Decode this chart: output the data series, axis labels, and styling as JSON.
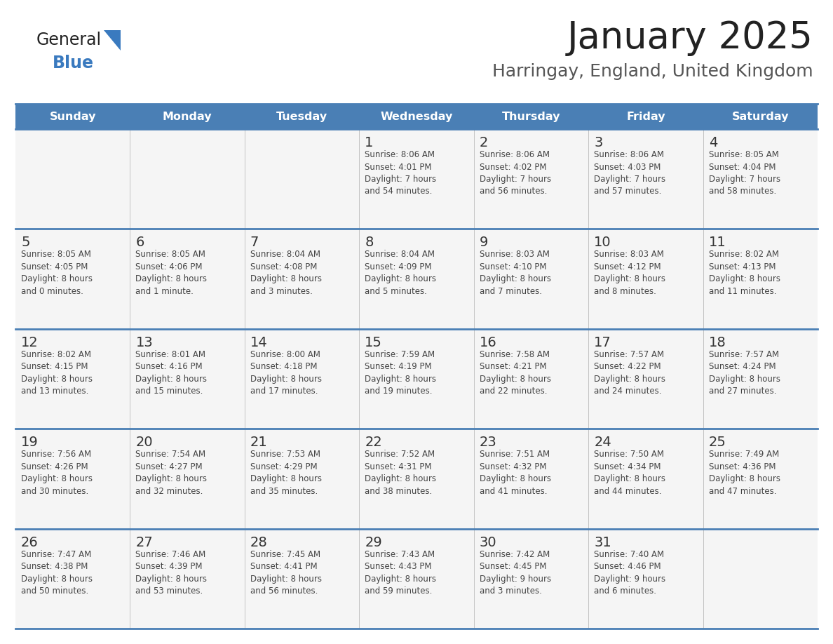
{
  "title": "January 2025",
  "subtitle": "Harringay, England, United Kingdom",
  "header_bg_color": "#4a7fb5",
  "header_text_color": "#ffffff",
  "cell_bg_color": "#f5f5f5",
  "day_number_color": "#333333",
  "cell_text_color": "#444444",
  "border_color": "#4a7fb5",
  "row_border_color": "#4a7fb5",
  "days_of_week": [
    "Sunday",
    "Monday",
    "Tuesday",
    "Wednesday",
    "Thursday",
    "Friday",
    "Saturday"
  ],
  "title_color": "#222222",
  "subtitle_color": "#555555",
  "logo_general_color": "#222222",
  "logo_blue_color": "#3a7abf",
  "calendar_data": [
    [
      "",
      "",
      "",
      "1\nSunrise: 8:06 AM\nSunset: 4:01 PM\nDaylight: 7 hours\nand 54 minutes.",
      "2\nSunrise: 8:06 AM\nSunset: 4:02 PM\nDaylight: 7 hours\nand 56 minutes.",
      "3\nSunrise: 8:06 AM\nSunset: 4:03 PM\nDaylight: 7 hours\nand 57 minutes.",
      "4\nSunrise: 8:05 AM\nSunset: 4:04 PM\nDaylight: 7 hours\nand 58 minutes."
    ],
    [
      "5\nSunrise: 8:05 AM\nSunset: 4:05 PM\nDaylight: 8 hours\nand 0 minutes.",
      "6\nSunrise: 8:05 AM\nSunset: 4:06 PM\nDaylight: 8 hours\nand 1 minute.",
      "7\nSunrise: 8:04 AM\nSunset: 4:08 PM\nDaylight: 8 hours\nand 3 minutes.",
      "8\nSunrise: 8:04 AM\nSunset: 4:09 PM\nDaylight: 8 hours\nand 5 minutes.",
      "9\nSunrise: 8:03 AM\nSunset: 4:10 PM\nDaylight: 8 hours\nand 7 minutes.",
      "10\nSunrise: 8:03 AM\nSunset: 4:12 PM\nDaylight: 8 hours\nand 8 minutes.",
      "11\nSunrise: 8:02 AM\nSunset: 4:13 PM\nDaylight: 8 hours\nand 11 minutes."
    ],
    [
      "12\nSunrise: 8:02 AM\nSunset: 4:15 PM\nDaylight: 8 hours\nand 13 minutes.",
      "13\nSunrise: 8:01 AM\nSunset: 4:16 PM\nDaylight: 8 hours\nand 15 minutes.",
      "14\nSunrise: 8:00 AM\nSunset: 4:18 PM\nDaylight: 8 hours\nand 17 minutes.",
      "15\nSunrise: 7:59 AM\nSunset: 4:19 PM\nDaylight: 8 hours\nand 19 minutes.",
      "16\nSunrise: 7:58 AM\nSunset: 4:21 PM\nDaylight: 8 hours\nand 22 minutes.",
      "17\nSunrise: 7:57 AM\nSunset: 4:22 PM\nDaylight: 8 hours\nand 24 minutes.",
      "18\nSunrise: 7:57 AM\nSunset: 4:24 PM\nDaylight: 8 hours\nand 27 minutes."
    ],
    [
      "19\nSunrise: 7:56 AM\nSunset: 4:26 PM\nDaylight: 8 hours\nand 30 minutes.",
      "20\nSunrise: 7:54 AM\nSunset: 4:27 PM\nDaylight: 8 hours\nand 32 minutes.",
      "21\nSunrise: 7:53 AM\nSunset: 4:29 PM\nDaylight: 8 hours\nand 35 minutes.",
      "22\nSunrise: 7:52 AM\nSunset: 4:31 PM\nDaylight: 8 hours\nand 38 minutes.",
      "23\nSunrise: 7:51 AM\nSunset: 4:32 PM\nDaylight: 8 hours\nand 41 minutes.",
      "24\nSunrise: 7:50 AM\nSunset: 4:34 PM\nDaylight: 8 hours\nand 44 minutes.",
      "25\nSunrise: 7:49 AM\nSunset: 4:36 PM\nDaylight: 8 hours\nand 47 minutes."
    ],
    [
      "26\nSunrise: 7:47 AM\nSunset: 4:38 PM\nDaylight: 8 hours\nand 50 minutes.",
      "27\nSunrise: 7:46 AM\nSunset: 4:39 PM\nDaylight: 8 hours\nand 53 minutes.",
      "28\nSunrise: 7:45 AM\nSunset: 4:41 PM\nDaylight: 8 hours\nand 56 minutes.",
      "29\nSunrise: 7:43 AM\nSunset: 4:43 PM\nDaylight: 8 hours\nand 59 minutes.",
      "30\nSunrise: 7:42 AM\nSunset: 4:45 PM\nDaylight: 9 hours\nand 3 minutes.",
      "31\nSunrise: 7:40 AM\nSunset: 4:46 PM\nDaylight: 9 hours\nand 6 minutes.",
      ""
    ]
  ]
}
